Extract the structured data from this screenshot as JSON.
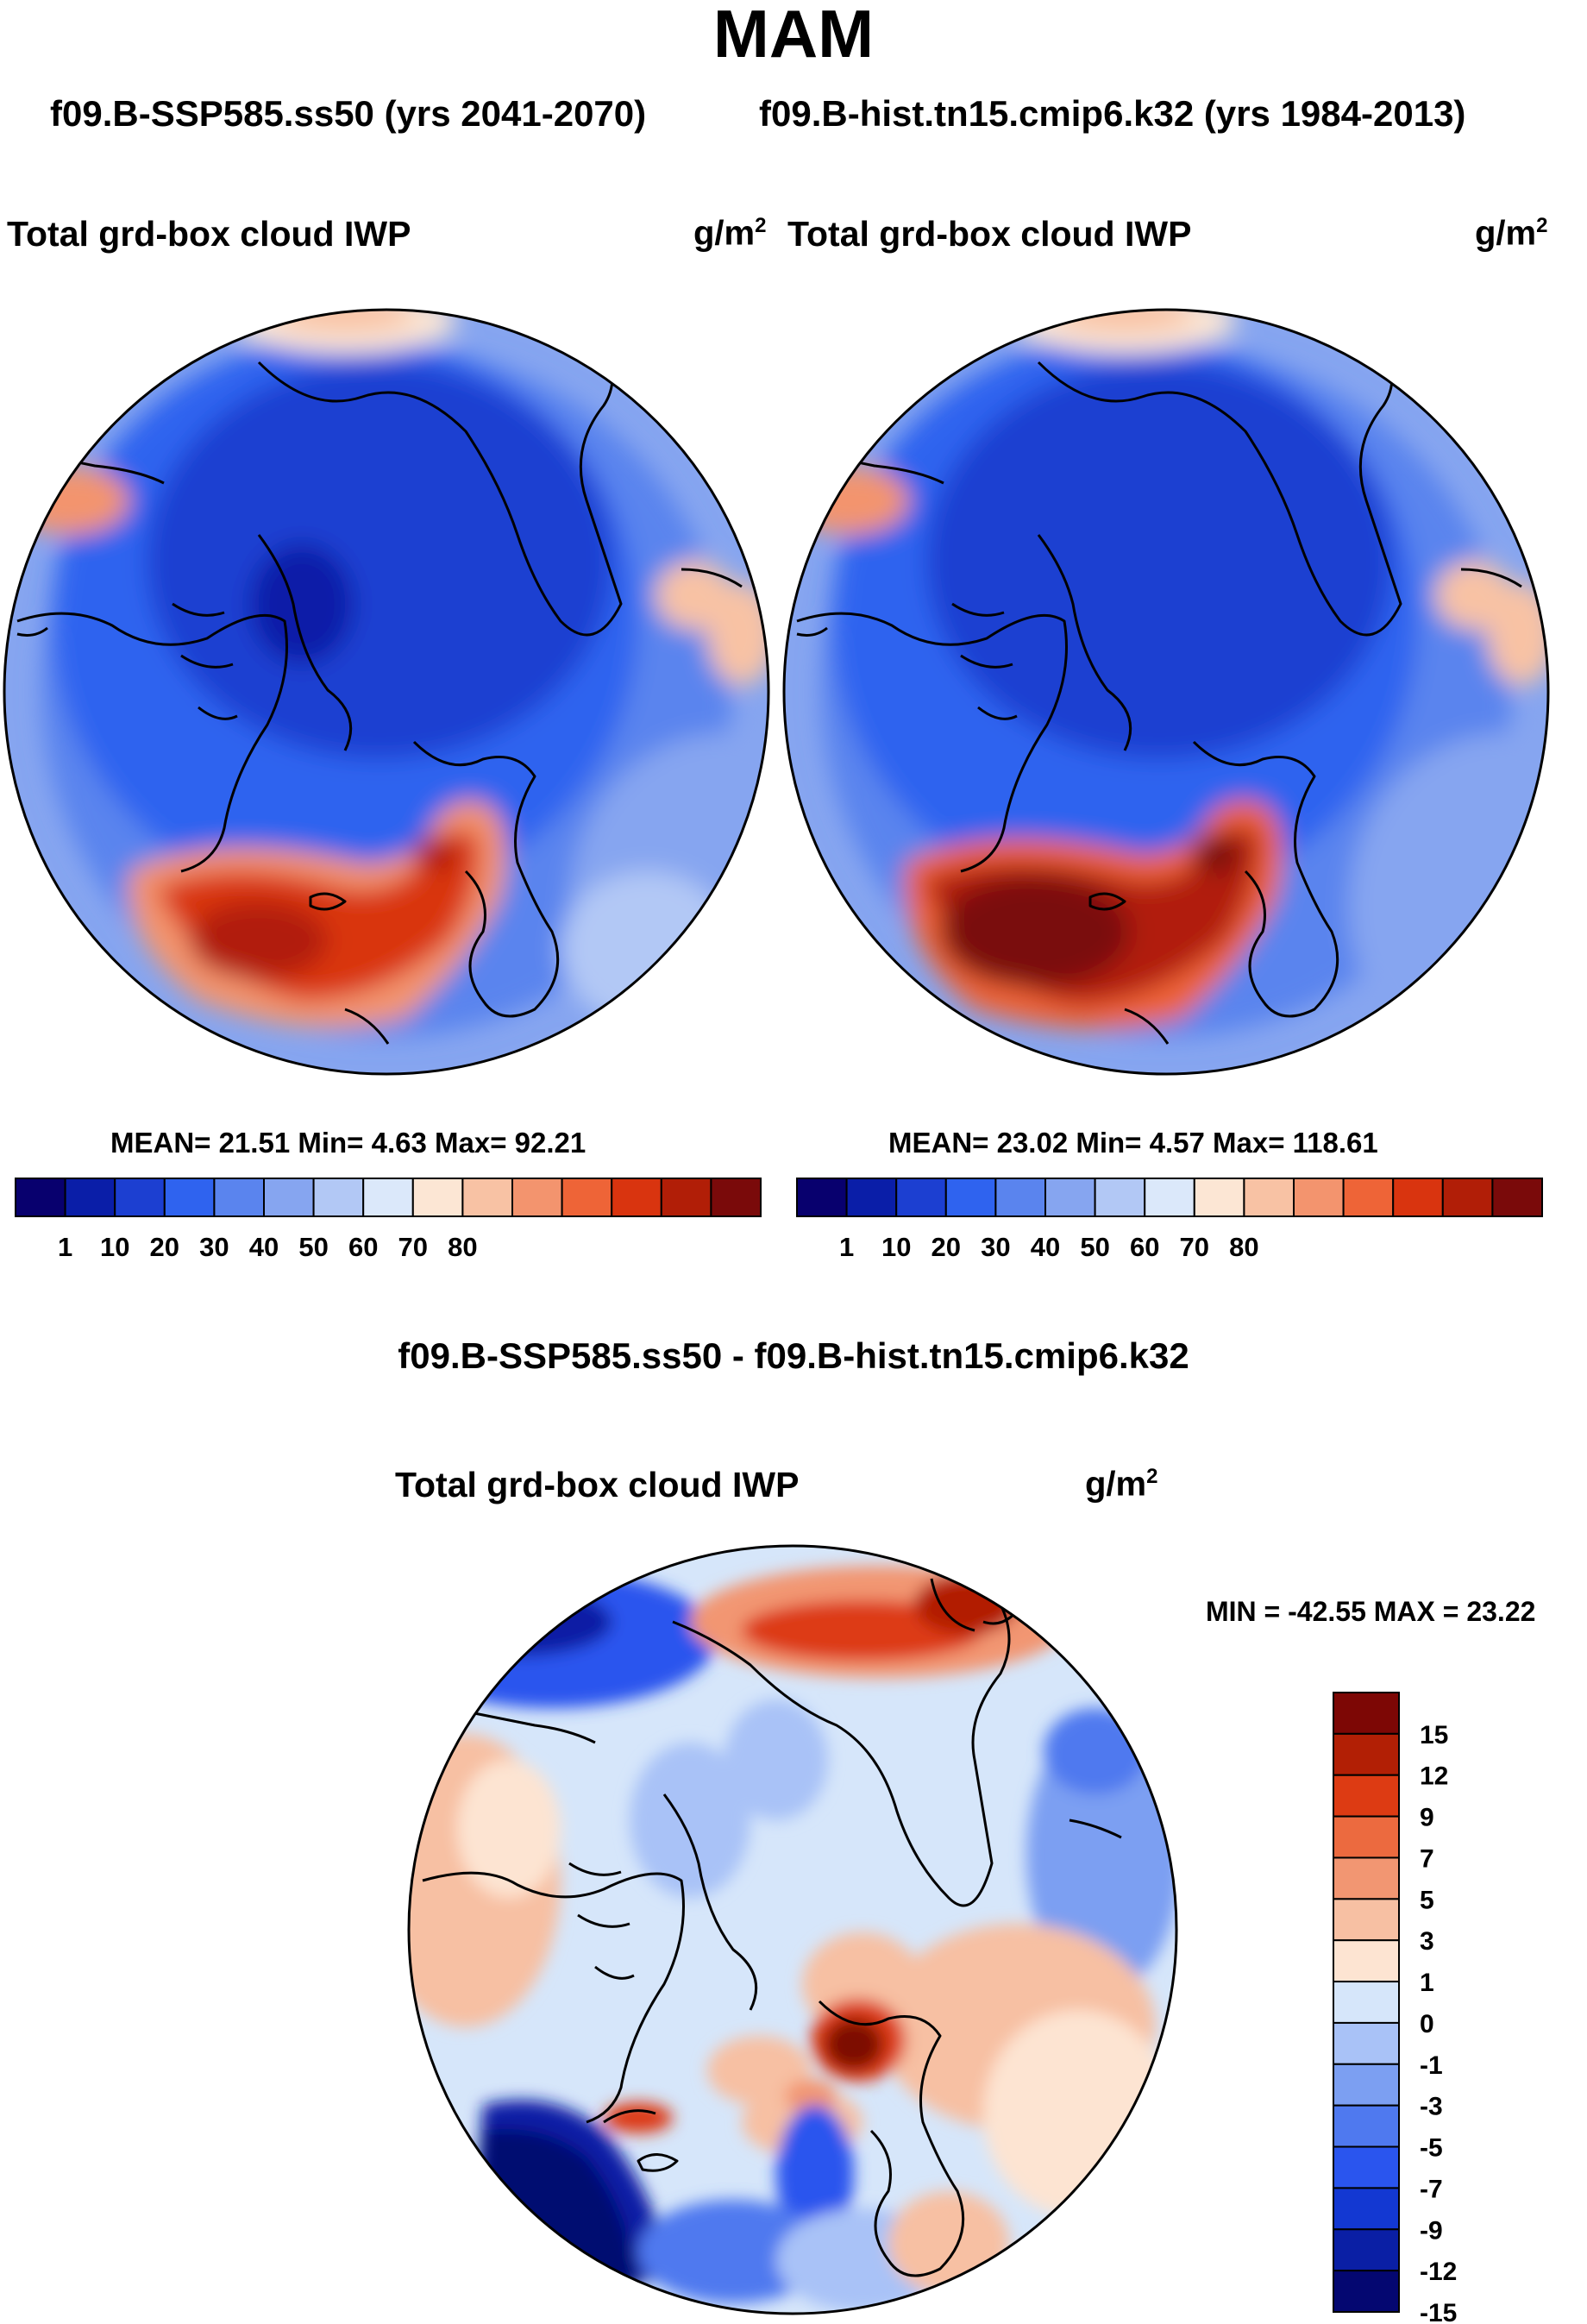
{
  "figure": {
    "title": "MAM",
    "subtitle_left": "f09.B-SSP585.ss50 (yrs 2041-2070)",
    "subtitle_right": "f09.B-hist.tn15.cmip6.k32 (yrs 1984-2013)",
    "diff_title": "f09.B-SSP585.ss50 - f09.B-hist.tn15.cmip6.k32"
  },
  "chart_data": [
    {
      "type": "heatmap",
      "projection": "north-polar-stereographic",
      "variable": "Total grd-box cloud IWP",
      "units": "g/m2",
      "units_base": "g/m",
      "units_exp": "2",
      "case": "f09.B-SSP585.ss50 (yrs 2041-2070)",
      "stats_text": "MEAN=  21.51  Min=   4.63  Max=  92.21",
      "mean": 21.51,
      "min": 4.63,
      "max": 92.21,
      "colorbar_orientation": "horizontal",
      "colorbar_tick_labels": [
        "1",
        "10",
        "20",
        "30",
        "40",
        "50",
        "60",
        "70",
        "80"
      ]
    },
    {
      "type": "heatmap",
      "projection": "north-polar-stereographic",
      "variable": "Total grd-box cloud IWP",
      "units": "g/m2",
      "units_base": "g/m",
      "units_exp": "2",
      "case": "f09.B-hist.tn15.cmip6.k32 (yrs 1984-2013)",
      "stats_text": "MEAN=  23.02  Min=   4.57  Max= 118.61",
      "mean": 23.02,
      "min": 4.57,
      "max": 118.61,
      "colorbar_orientation": "horizontal",
      "colorbar_tick_labels": [
        "1",
        "10",
        "20",
        "30",
        "40",
        "50",
        "60",
        "70",
        "80"
      ]
    },
    {
      "type": "heatmap",
      "projection": "north-polar-stereographic",
      "variable": "Total grd-box cloud IWP",
      "units": "g/m2",
      "units_base": "g/m",
      "units_exp": "2",
      "case": "f09.B-SSP585.ss50 - f09.B-hist.tn15.cmip6.k32",
      "stats_text": "MIN = -42.55 MAX =  23.22",
      "min": -42.55,
      "max": 23.22,
      "colorbar_orientation": "vertical",
      "colorbar_tick_labels": [
        "15",
        "12",
        "9",
        "7",
        "5",
        "3",
        "1",
        "0",
        "-1",
        "-3",
        "-5",
        "-7",
        "-9",
        "-12",
        "-15"
      ]
    }
  ],
  "palettes": {
    "abs": [
      "#08006e",
      "#0a1ea8",
      "#1c3fd1",
      "#2f63ef",
      "#5a84ee",
      "#86a5f0",
      "#b2c8f5",
      "#dbe8fa",
      "#fce6d4",
      "#f8c2a4",
      "#f3946e",
      "#ee6437",
      "#d9340f",
      "#b11e07",
      "#7a0a0a"
    ],
    "diff": [
      "#040771",
      "#0a1fa5",
      "#1338d2",
      "#2a55ee",
      "#4f79ef",
      "#7c9ff2",
      "#a9c2f7",
      "#d6e6fa",
      "#fde4d2",
      "#f7c0a3",
      "#f29672",
      "#ec6a3f",
      "#dd3b13",
      "#b21f05",
      "#7d0705"
    ]
  }
}
